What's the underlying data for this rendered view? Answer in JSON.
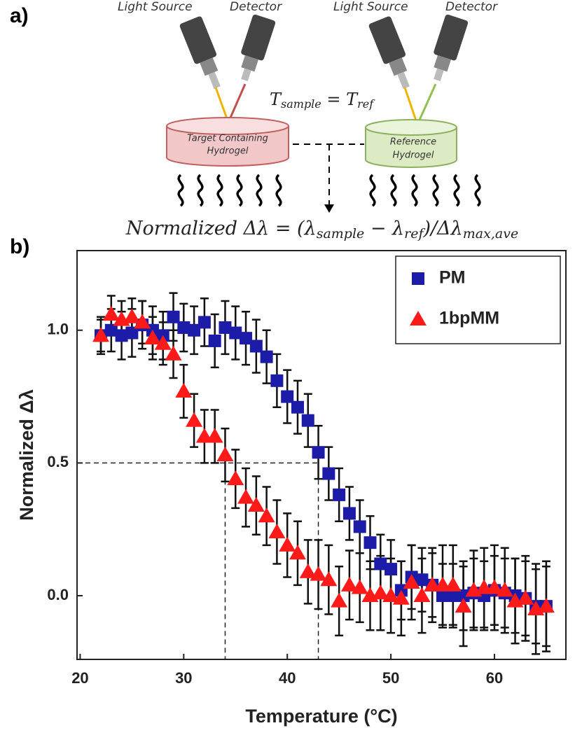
{
  "diagram": {
    "label": "a)",
    "light_source_left": "Light Source",
    "detector_left": "Detector",
    "light_source_right": "Light Source",
    "detector_right": "Detector",
    "temperature_parts": [
      "T",
      "sample",
      " = T",
      "ref"
    ],
    "sample_dish": [
      "Target Containing",
      "Hydrogel"
    ],
    "reference_dish": [
      "Reference",
      "Hydrogel"
    ],
    "equation_parts": [
      "Normalized Δλ = (λ",
      "sample",
      " − λ",
      "ref",
      ")/Δλ",
      "max,ave"
    ]
  },
  "chart_data": {
    "type": "scatter",
    "label": "b)",
    "xlabel": "Temperature (°C)",
    "ylabel": "Normalized Δλ",
    "xlim": [
      19.7,
      66.9
    ],
    "ylim": [
      -0.24,
      1.3
    ],
    "xticks": [
      20,
      30,
      40,
      50,
      60
    ],
    "yticks": [
      {
        "value": 0,
        "label": "0.0"
      },
      {
        "value": 0.5,
        "label": "0.5"
      },
      {
        "value": 1,
        "label": "1.0"
      }
    ],
    "legend": "top-right",
    "reference_lines": {
      "y": 0.5,
      "x": [
        34,
        43
      ]
    },
    "x": [
      22,
      23,
      24,
      25,
      26,
      27,
      28,
      29,
      30,
      31,
      32,
      33,
      34,
      35,
      36,
      37,
      38,
      39,
      40,
      41,
      42,
      43,
      44,
      45,
      46,
      47,
      48,
      49,
      50,
      51,
      52,
      53,
      54,
      55,
      56,
      57,
      58,
      59,
      60,
      61,
      62,
      63,
      64,
      65
    ],
    "series": [
      {
        "name": "PM",
        "color": "#1c1ca8",
        "marker": "square",
        "values": [
          0.98,
          1.0,
          0.98,
          0.99,
          1.02,
          1.0,
          0.98,
          1.05,
          1.01,
          1.0,
          1.03,
          0.96,
          1.01,
          0.99,
          0.97,
          0.94,
          0.9,
          0.81,
          0.75,
          0.71,
          0.66,
          0.54,
          0.46,
          0.38,
          0.31,
          0.26,
          0.2,
          0.12,
          0.1,
          0.02,
          0.07,
          0.06,
          0.04,
          0.0,
          0.0,
          0.0,
          0.01,
          0.0,
          0.02,
          0.01,
          0.0,
          -0.01,
          -0.04,
          -0.04
        ],
        "errors": [
          0.07,
          0.08,
          0.09,
          0.09,
          0.09,
          0.09,
          0.09,
          0.09,
          0.09,
          0.09,
          0.09,
          0.1,
          0.1,
          0.1,
          0.1,
          0.1,
          0.1,
          0.1,
          0.1,
          0.1,
          0.1,
          0.1,
          0.1,
          0.1,
          0.1,
          0.1,
          0.1,
          0.11,
          0.11,
          0.11,
          0.12,
          0.12,
          0.12,
          0.12,
          0.12,
          0.13,
          0.13,
          0.13,
          0.13,
          0.13,
          0.14,
          0.14,
          0.14,
          0.15
        ]
      },
      {
        "name": "1bpMM",
        "color": "#ff1a1a",
        "marker": "triangle",
        "values": [
          0.98,
          1.06,
          1.04,
          1.05,
          1.03,
          0.97,
          0.95,
          0.91,
          0.77,
          0.66,
          0.6,
          0.6,
          0.53,
          0.44,
          0.37,
          0.34,
          0.3,
          0.24,
          0.19,
          0.16,
          0.09,
          0.08,
          0.06,
          -0.02,
          0.04,
          0.03,
          0.0,
          0.01,
          0.0,
          -0.01,
          0.05,
          0.0,
          0.04,
          0.04,
          0.04,
          -0.04,
          0.02,
          0.03,
          0.03,
          0.02,
          -0.02,
          -0.01,
          -0.05,
          -0.04
        ],
        "errors": [
          0.06,
          0.07,
          0.07,
          0.07,
          0.08,
          0.08,
          0.08,
          0.09,
          0.1,
          0.1,
          0.1,
          0.1,
          0.1,
          0.11,
          0.11,
          0.11,
          0.11,
          0.12,
          0.12,
          0.12,
          0.12,
          0.13,
          0.13,
          0.13,
          0.13,
          0.13,
          0.13,
          0.14,
          0.14,
          0.14,
          0.14,
          0.14,
          0.14,
          0.15,
          0.15,
          0.15,
          0.15,
          0.15,
          0.16,
          0.16,
          0.16,
          0.16,
          0.17,
          0.17
        ]
      }
    ]
  }
}
